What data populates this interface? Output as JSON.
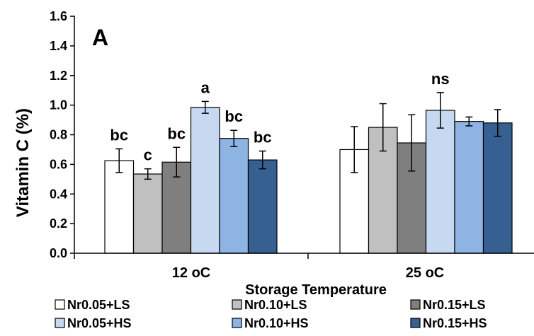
{
  "chart_data": {
    "type": "bar",
    "panel_label": "A",
    "xlabel": "Storage Temperature",
    "ylabel": "Vitamin C (%)",
    "ylim": [
      0.0,
      1.6
    ],
    "yticks": [
      "0.0",
      "0.2",
      "0.4",
      "0.6",
      "0.8",
      "1.0",
      "1.2",
      "1.4",
      "1.6"
    ],
    "categories": [
      "12 oC",
      "25 oC"
    ],
    "grid": false,
    "legend_position": "bottom",
    "series": [
      {
        "name": "Nr0.05+LS",
        "color": "#ffffff",
        "values": [
          0.625,
          0.7
        ],
        "errors": [
          0.08,
          0.155
        ]
      },
      {
        "name": "Nr0.10+LS",
        "color": "#c0c0c0",
        "values": [
          0.535,
          0.85
        ],
        "errors": [
          0.035,
          0.16
        ]
      },
      {
        "name": "Nr0.15+LS",
        "color": "#7f7f7f",
        "values": [
          0.615,
          0.745
        ],
        "errors": [
          0.1,
          0.19
        ]
      },
      {
        "name": "Nr0.05+HS",
        "color": "#c6d9f1",
        "values": [
          0.985,
          0.965
        ],
        "errors": [
          0.04,
          0.12
        ]
      },
      {
        "name": "Nr0.10+HS",
        "color": "#8eb4e3",
        "values": [
          0.775,
          0.89
        ],
        "errors": [
          0.055,
          0.03
        ]
      },
      {
        "name": "Nr0.15+HS",
        "color": "#376092",
        "values": [
          0.63,
          0.88
        ],
        "errors": [
          0.06,
          0.09
        ]
      }
    ],
    "annotations": [
      [
        "bc",
        "c",
        "bc",
        "a",
        "bc",
        "bc"
      ],
      [
        "",
        "",
        "",
        "ns",
        "",
        ""
      ]
    ]
  }
}
